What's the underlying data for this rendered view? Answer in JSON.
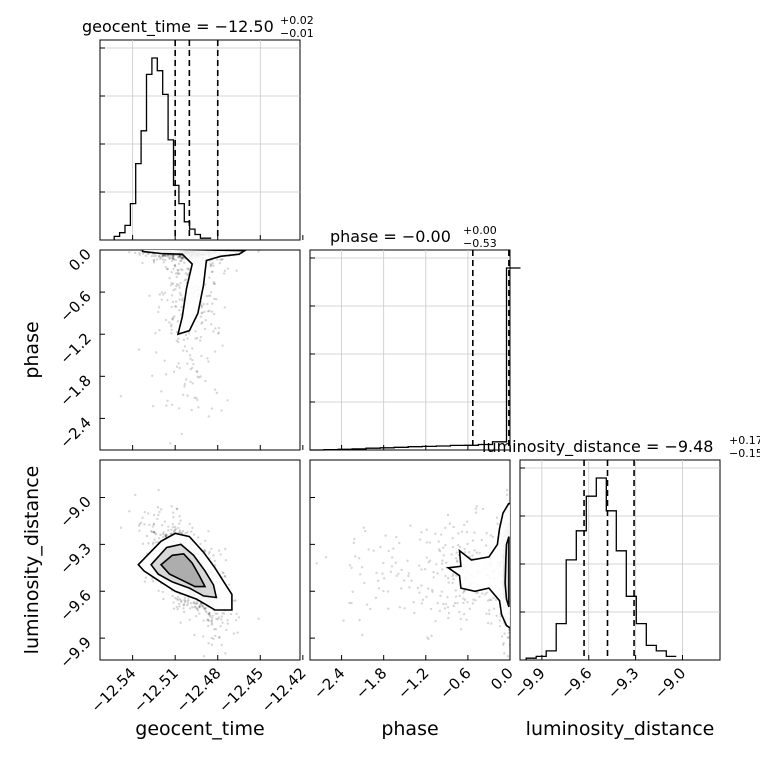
{
  "chart_data": {
    "type": "scatter",
    "kind": "corner-plot",
    "parameters": [
      {
        "name": "geocent_time",
        "axis_label": "geocent_time",
        "title_main": "geocent_time = −12.50",
        "title_sup": "+0.02",
        "title_sub": "−0.01",
        "median": -12.5,
        "q16": -12.51,
        "q84": -12.48,
        "range": [
          -12.563,
          -12.422
        ],
        "ticks": [
          -12.54,
          -12.51,
          -12.48,
          -12.45,
          -12.42
        ],
        "tick_labels": [
          "−12.54",
          "−12.51",
          "−12.48",
          "−12.45",
          "−12.42"
        ]
      },
      {
        "name": "phase",
        "axis_label": "phase",
        "title_main": "phase = −0.00",
        "title_sup": "+0.00",
        "title_sub": "−0.53",
        "median": 0.0,
        "q16": -0.53,
        "q84": 0.0,
        "range": [
          -2.85,
          0.0
        ],
        "ticks": [
          -2.4,
          -1.8,
          -1.2,
          -0.6,
          0.0
        ],
        "tick_labels": [
          "−2.4",
          "−1.8",
          "−1.2",
          "−0.6",
          "0.0"
        ]
      },
      {
        "name": "luminosity_distance",
        "axis_label": "luminosity_distance",
        "title_main": "luminosity_distance = −9.48",
        "title_sup": "+0.17",
        "title_sub": "−0.15",
        "median": -9.48,
        "q16": -9.63,
        "q84": -9.31,
        "range": [
          -10.04,
          -8.76
        ],
        "ticks": [
          -9.9,
          -9.6,
          -9.3,
          -9.0
        ],
        "tick_labels": [
          "−9.9",
          "−9.6",
          "−9.3",
          "−9.0"
        ]
      }
    ],
    "histograms": [
      {
        "parameter": "geocent_time",
        "bin_edges_start": -12.553,
        "bin_width": 0.0038,
        "counts": [
          0.02,
          0.04,
          0.08,
          0.2,
          0.42,
          0.6,
          0.91,
          1.0,
          0.93,
          0.8,
          0.55,
          0.3,
          0.2,
          0.1,
          0.06,
          0.03,
          0.01,
          0.01
        ]
      },
      {
        "parameter": "phase",
        "bin_edges_start": -2.85,
        "bin_width": 0.2,
        "counts": [
          0,
          0.002,
          0.004,
          0.006,
          0.01,
          0.012,
          0.015,
          0.018,
          0.02,
          0.022,
          0.025,
          0.026,
          0.03,
          0.045,
          1.0
        ]
      },
      {
        "parameter": "luminosity_distance",
        "bin_edges_start": -10.0,
        "bin_width": 0.064,
        "counts": [
          0.01,
          0.02,
          0.05,
          0.2,
          0.55,
          0.71,
          0.9,
          1.0,
          0.82,
          0.6,
          0.35,
          0.2,
          0.08,
          0.05,
          0.02
        ]
      }
    ],
    "grid": true
  }
}
